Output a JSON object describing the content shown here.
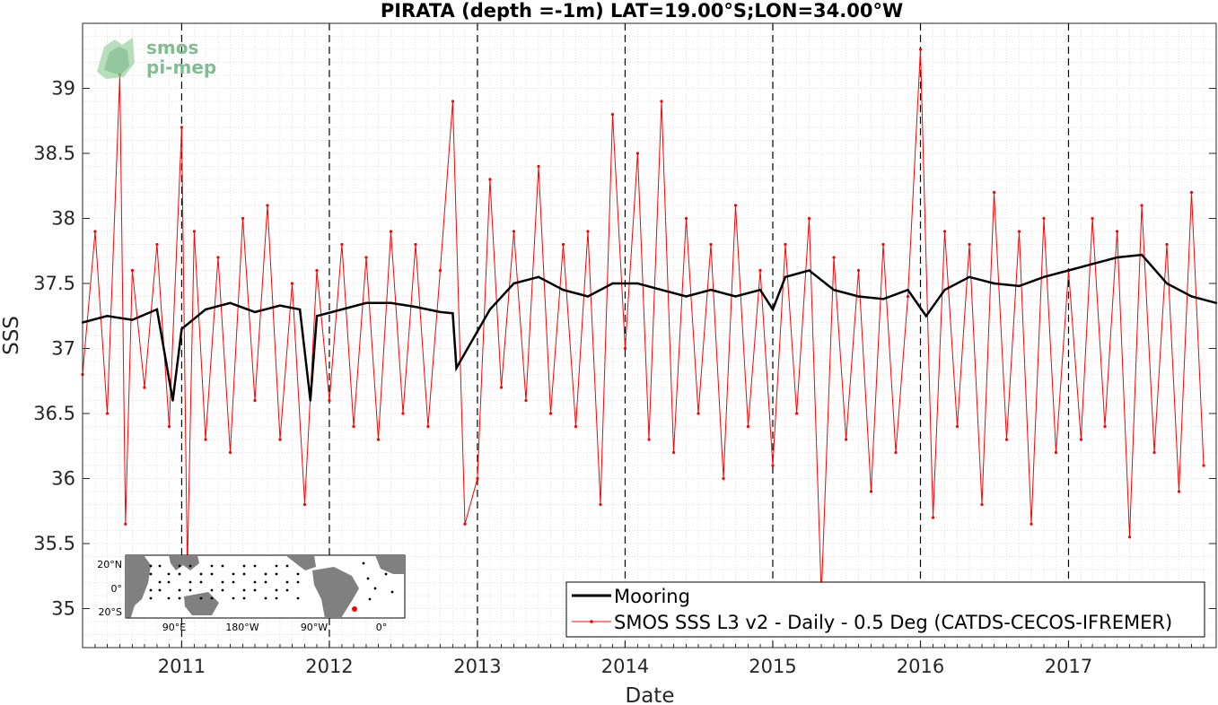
{
  "chart_data": {
    "type": "line",
    "title": "PIRATA (depth =-1m) LAT=19.00°S;LON=34.00°W",
    "xlabel": "Date",
    "ylabel": "SSS",
    "xlim": [
      "2010-05-01",
      "2018-01-01"
    ],
    "ylim": [
      34.7,
      39.5
    ],
    "yticks": [
      35,
      35.5,
      36,
      36.5,
      37,
      37.5,
      38,
      38.5,
      39
    ],
    "ytick_labels": [
      "35",
      "35.5",
      "36",
      "36.5",
      "37",
      "37.5",
      "38",
      "38.5",
      "39"
    ],
    "xticks": [
      "2011-01-01",
      "2012-01-01",
      "2013-01-01",
      "2014-01-01",
      "2015-01-01",
      "2016-01-01",
      "2017-01-01"
    ],
    "xtick_labels": [
      "2011",
      "2012",
      "2013",
      "2014",
      "2015",
      "2016",
      "2017"
    ],
    "year_dividers_dashed": true,
    "grid": "minor-dotted",
    "legend_placement": "bottom-right",
    "series": [
      {
        "name": "Mooring",
        "color": "#000000",
        "style": "thick-line",
        "x": [
          "2010-05-01",
          "2010-07-01",
          "2010-09-01",
          "2010-11-01",
          "2010-12-10",
          "2011-01-01",
          "2011-03-01",
          "2011-05-01",
          "2011-07-01",
          "2011-09-01",
          "2011-10-20",
          "2011-11-15",
          "2011-12-01",
          "2012-02-01",
          "2012-04-01",
          "2012-06-01",
          "2012-08-01",
          "2012-10-01",
          "2012-11-01",
          "2012-11-10",
          "2013-02-01",
          "2013-04-01",
          "2013-06-01",
          "2013-08-01",
          "2013-10-01",
          "2013-12-01",
          "2014-02-01",
          "2014-04-01",
          "2014-06-01",
          "2014-08-01",
          "2014-10-01",
          "2014-12-01",
          "2015-01-01",
          "2015-02-01",
          "2015-04-01",
          "2015-06-01",
          "2015-08-01",
          "2015-10-01",
          "2015-12-01",
          "2016-01-15",
          "2016-03-01",
          "2016-05-01",
          "2016-07-01",
          "2016-09-01",
          "2016-11-01",
          "2017-01-01",
          "2017-03-01",
          "2017-05-01",
          "2017-07-01",
          "2017-09-01",
          "2017-11-01",
          "2018-01-01"
        ],
        "y": [
          37.2,
          37.25,
          37.22,
          37.3,
          36.6,
          37.15,
          37.3,
          37.35,
          37.28,
          37.33,
          37.3,
          36.6,
          37.25,
          37.3,
          37.35,
          37.35,
          37.32,
          37.28,
          37.27,
          36.85,
          37.3,
          37.5,
          37.55,
          37.45,
          37.4,
          37.5,
          37.5,
          37.45,
          37.4,
          37.45,
          37.4,
          37.45,
          37.3,
          37.55,
          37.6,
          37.45,
          37.4,
          37.38,
          37.45,
          37.25,
          37.45,
          37.55,
          37.5,
          37.48,
          37.55,
          37.6,
          37.65,
          37.7,
          37.72,
          37.5,
          37.4,
          37.35
        ]
      },
      {
        "name": "SMOS SSS L3 v2 - Daily - 0.5 Deg (CATDS-CECOS-IFREMER)",
        "color": "#ff0000",
        "style": "thin-line-with-dots",
        "x": [
          "2010-05-01",
          "2010-06-01",
          "2010-07-01",
          "2010-08-01",
          "2010-08-15",
          "2010-09-01",
          "2010-10-01",
          "2010-11-01",
          "2010-12-01",
          "2011-01-01",
          "2011-01-15",
          "2011-02-01",
          "2011-03-01",
          "2011-04-01",
          "2011-05-01",
          "2011-06-01",
          "2011-07-01",
          "2011-08-01",
          "2011-09-01",
          "2011-10-01",
          "2011-11-01",
          "2011-12-01",
          "2012-01-01",
          "2012-02-01",
          "2012-03-01",
          "2012-04-01",
          "2012-05-01",
          "2012-06-01",
          "2012-07-01",
          "2012-08-01",
          "2012-09-01",
          "2012-10-01",
          "2012-11-01",
          "2012-12-01",
          "2013-01-01",
          "2013-02-01",
          "2013-03-01",
          "2013-04-01",
          "2013-05-01",
          "2013-06-01",
          "2013-07-01",
          "2013-08-01",
          "2013-09-01",
          "2013-10-01",
          "2013-11-01",
          "2013-12-01",
          "2014-01-01",
          "2014-02-01",
          "2014-03-01",
          "2014-04-01",
          "2014-05-01",
          "2014-06-01",
          "2014-07-01",
          "2014-08-01",
          "2014-09-01",
          "2014-10-01",
          "2014-11-01",
          "2014-12-01",
          "2015-01-01",
          "2015-02-01",
          "2015-03-01",
          "2015-04-01",
          "2015-05-01",
          "2015-06-01",
          "2015-07-01",
          "2015-08-01",
          "2015-09-01",
          "2015-10-01",
          "2015-11-01",
          "2015-12-01",
          "2016-01-01",
          "2016-02-01",
          "2016-03-01",
          "2016-04-01",
          "2016-05-01",
          "2016-06-01",
          "2016-07-01",
          "2016-08-01",
          "2016-09-01",
          "2016-10-01",
          "2016-11-01",
          "2016-12-01",
          "2017-01-01",
          "2017-02-01",
          "2017-03-01",
          "2017-04-01",
          "2017-05-01",
          "2017-06-01",
          "2017-07-01",
          "2017-08-01",
          "2017-09-01",
          "2017-10-01",
          "2017-11-01",
          "2017-12-01"
        ],
        "y": [
          36.8,
          37.9,
          36.5,
          39.1,
          35.65,
          37.6,
          36.7,
          37.8,
          36.4,
          38.7,
          35.3,
          37.9,
          36.3,
          37.7,
          36.2,
          38.0,
          36.6,
          38.1,
          36.3,
          37.5,
          35.8,
          37.6,
          36.6,
          37.8,
          36.4,
          37.7,
          36.3,
          37.9,
          36.5,
          37.8,
          36.4,
          37.6,
          38.9,
          35.65,
          36.0,
          38.3,
          36.7,
          37.9,
          36.6,
          38.4,
          36.5,
          37.8,
          36.4,
          37.9,
          35.8,
          38.8,
          37.0,
          38.5,
          36.3,
          38.9,
          36.2,
          38.0,
          36.5,
          37.8,
          36.0,
          38.1,
          36.4,
          37.6,
          36.1,
          37.8,
          36.5,
          38.0,
          35.1,
          37.7,
          36.3,
          37.6,
          35.9,
          37.8,
          36.2,
          37.4,
          39.3,
          35.7,
          37.9,
          36.4,
          37.8,
          35.8,
          38.2,
          36.3,
          37.9,
          35.65,
          38.0,
          36.2,
          37.6,
          36.3,
          38.0,
          36.4,
          37.9,
          35.55,
          38.1,
          36.2,
          37.8,
          35.9,
          38.2,
          36.1
        ]
      }
    ]
  },
  "legend": {
    "items": [
      {
        "label": "Mooring",
        "color": "#000000"
      },
      {
        "label": "SMOS SSS L3 v2 - Daily - 0.5 Deg (CATDS-CECOS-IFREMER)",
        "color": "#ff0000"
      }
    ]
  },
  "logo": {
    "line1": "smos",
    "line2": "pi-mep",
    "color": "#7fbf8f"
  },
  "inset_map": {
    "ylabels": [
      "20°N",
      "0°",
      "20°S"
    ],
    "xlabels": [
      "90°E",
      "180°W",
      "90°W",
      "0°"
    ],
    "land_color": "#808080",
    "sea_color": "#ffffff",
    "marker_color": "#ff0000"
  }
}
